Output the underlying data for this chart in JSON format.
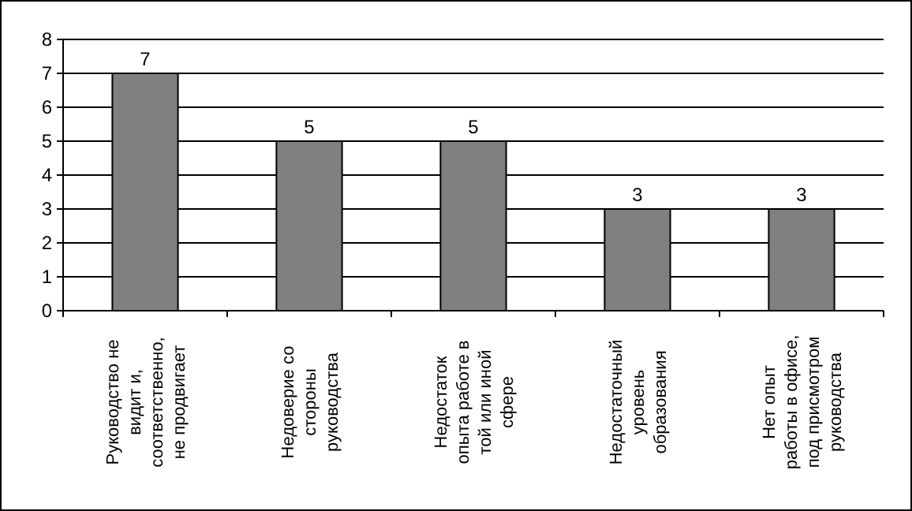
{
  "chart_data": {
    "type": "bar",
    "categories": [
      "Руководство не\nвидит и,\nсоответственно,\nне продвигает",
      "Недоверие со\nстороны\nруководства",
      "Недостаток\nопыта работе в\nтой или иной\nсфере",
      "Недостаточный\nуровень\nобразования",
      "Нет опыт\nработы в офисе,\nпод присмотром\nруководства"
    ],
    "values": [
      7,
      5,
      5,
      3,
      3
    ],
    "color": "#808080",
    "ylim": [
      0,
      8
    ],
    "yticks": [
      0,
      1,
      2,
      3,
      4,
      5,
      6,
      7,
      8
    ],
    "grid": "y",
    "data_labels": true
  }
}
